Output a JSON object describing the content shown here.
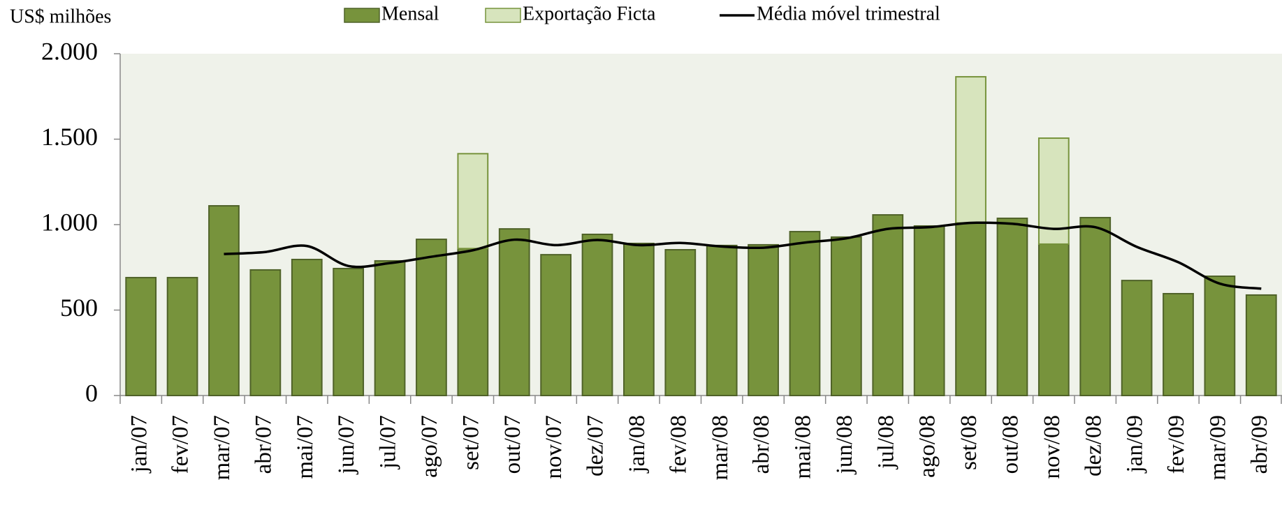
{
  "chart_data": {
    "type": "bar",
    "y_axis_label": "US$ milhões",
    "categories": [
      "jan/07",
      "fev/07",
      "mar/07",
      "abr/07",
      "mai/07",
      "jun/07",
      "jul/07",
      "ago/07",
      "set/07",
      "out/07",
      "nov/07",
      "dez/07",
      "jan/08",
      "fev/08",
      "mar/08",
      "abr/08",
      "mai/08",
      "jun/08",
      "jul/08",
      "ago/08",
      "set/08",
      "out/08",
      "nov/08",
      "dez/08",
      "jan/09",
      "fev/09",
      "mar/09",
      "abr/09"
    ],
    "series": [
      {
        "name": "Mensal",
        "color": "#77933c",
        "type": "bar",
        "stacked": true,
        "values": [
          690,
          690,
          1110,
          735,
          796,
          743,
          788,
          914,
          860,
          975,
          824,
          943,
          890,
          853,
          878,
          882,
          959,
          927,
          1057,
          992,
          1010,
          1037,
          886,
          1041,
          673,
          596,
          698,
          588
        ]
      },
      {
        "name": "Exportação Ficta",
        "color": "#d7e4bd",
        "type": "bar",
        "stacked": true,
        "values": [
          null,
          null,
          null,
          null,
          null,
          null,
          null,
          null,
          555,
          null,
          null,
          null,
          null,
          null,
          null,
          null,
          null,
          null,
          null,
          null,
          855,
          null,
          620,
          null,
          null,
          null,
          null,
          null
        ]
      },
      {
        "name": "Média móvel trimestral",
        "color": "#000000",
        "type": "line",
        "values": [
          null,
          null,
          828,
          840,
          875,
          758,
          775,
          812,
          850,
          912,
          880,
          910,
          880,
          893,
          872,
          865,
          895,
          920,
          975,
          985,
          1010,
          1005,
          975,
          985,
          870,
          780,
          655,
          625
        ]
      }
    ],
    "ylim": [
      0,
      2000
    ],
    "yticks": [
      0,
      500,
      {
        "value": 1000,
        "label": "1.000"
      },
      {
        "value": 1500,
        "label": "1.500"
      },
      {
        "value": 2000,
        "label": "2.000"
      }
    ],
    "plot_background": "#eff2ea",
    "legend": "top"
  }
}
